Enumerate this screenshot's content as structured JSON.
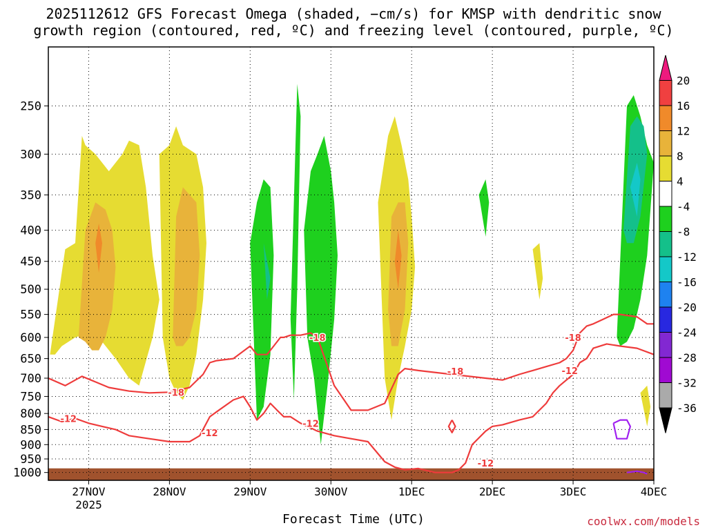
{
  "title_line1": "2025112612 GFS Forecast Omega (shaded, −cm/s) for KMSP with dendritic snow",
  "title_line2": "growth region (contoured, red, ºC) and freezing level (contoured, purple, ºC)",
  "credit": "coolwx.com/models",
  "colors": {
    "dgz_contour": "#ee3b3b",
    "freezing_contour": "#a020f0",
    "ground": "#a0522d"
  },
  "chart_data": {
    "type": "heatmap",
    "title": "2025112612 GFS Forecast Omega (shaded, −cm/s) for KMSP with dendritic snow growth region (contoured, red, ºC) and freezing level (contoured, purple, ºC)",
    "xlabel": "Forecast Time (UTC)",
    "ylabel": "",
    "x_ticks": [
      {
        "label": "27NOV",
        "sub": "2025",
        "hour": 12
      },
      {
        "label": "28NOV",
        "sub": "",
        "hour": 36
      },
      {
        "label": "29NOV",
        "sub": "",
        "hour": 60
      },
      {
        "label": "30NOV",
        "sub": "",
        "hour": 84
      },
      {
        "label": "1DEC",
        "sub": "",
        "hour": 108
      },
      {
        "label": "2DEC",
        "sub": "",
        "hour": 132
      },
      {
        "label": "3DEC",
        "sub": "",
        "hour": 156
      },
      {
        "label": "4DEC",
        "sub": "",
        "hour": 180
      }
    ],
    "xlim": [
      0,
      180
    ],
    "y_ticks": [
      250,
      300,
      350,
      400,
      450,
      500,
      550,
      600,
      650,
      700,
      750,
      800,
      850,
      900,
      950,
      1000
    ],
    "ylim": [
      1030,
      200
    ],
    "y_scale": "log",
    "grid": true,
    "colorbar": {
      "ticks": [
        20,
        16,
        12,
        8,
        4,
        -4,
        -8,
        -12,
        -16,
        -20,
        -24,
        -28,
        -32,
        -36
      ],
      "bins": [
        {
          "lo": 20,
          "hi": null,
          "color": "#ee1a7e"
        },
        {
          "lo": 16,
          "hi": 20,
          "color": "#f04040"
        },
        {
          "lo": 12,
          "hi": 16,
          "color": "#f08a2a"
        },
        {
          "lo": 8,
          "hi": 12,
          "color": "#e8b33a"
        },
        {
          "lo": 4,
          "hi": 8,
          "color": "#e6dc32"
        },
        {
          "lo": -4,
          "hi": 4,
          "color": "#ffffff"
        },
        {
          "lo": -8,
          "hi": -4,
          "color": "#1ed01e"
        },
        {
          "lo": -12,
          "hi": -8,
          "color": "#14c08a"
        },
        {
          "lo": -16,
          "hi": -12,
          "color": "#14c8c8"
        },
        {
          "lo": -20,
          "hi": -16,
          "color": "#1e82f0"
        },
        {
          "lo": -24,
          "hi": -20,
          "color": "#2828e0"
        },
        {
          "lo": -28,
          "hi": -24,
          "color": "#8228d2"
        },
        {
          "lo": -32,
          "hi": -28,
          "color": "#a00ad2"
        },
        {
          "lo": -36,
          "hi": -32,
          "color": "#aaaaaa"
        },
        {
          "lo": null,
          "hi": -36,
          "color": "#000000"
        }
      ]
    },
    "shaded_regions": [
      {
        "value": 6,
        "t": [
          0.5,
          5,
          8,
          10,
          11,
          14,
          18,
          22,
          24,
          27,
          29,
          31,
          33,
          31,
          27,
          24,
          20,
          16,
          12,
          8,
          4,
          2,
          0.5
        ],
        "p": [
          640,
          430,
          420,
          280,
          290,
          300,
          320,
          300,
          285,
          290,
          340,
          440,
          520,
          600,
          720,
          700,
          650,
          610,
          590,
          600,
          620,
          640,
          640
        ]
      },
      {
        "value": 10,
        "t": [
          9,
          11,
          14,
          17,
          19,
          20,
          19,
          17,
          15,
          13,
          11,
          9
        ],
        "p": [
          600,
          400,
          360,
          370,
          400,
          460,
          540,
          600,
          630,
          630,
          610,
          600
        ]
      },
      {
        "value": 14,
        "t": [
          14,
          15,
          16,
          15,
          14
        ],
        "p": [
          420,
          390,
          420,
          470,
          420
        ]
      },
      {
        "value": 6,
        "t": [
          33,
          36,
          38,
          40,
          44,
          46,
          47,
          46,
          44,
          42,
          40,
          38,
          36,
          34,
          33
        ],
        "p": [
          300,
          290,
          270,
          290,
          300,
          340,
          420,
          520,
          640,
          720,
          760,
          740,
          700,
          600,
          300
        ]
      },
      {
        "value": 10,
        "t": [
          37,
          38,
          40,
          42,
          44,
          45,
          44,
          42,
          40,
          38,
          37
        ],
        "p": [
          600,
          380,
          340,
          350,
          360,
          440,
          540,
          600,
          620,
          620,
          600
        ]
      },
      {
        "value": 6,
        "t": [
          98,
          101,
          103,
          105,
          107,
          108,
          109,
          108,
          106,
          104,
          102,
          100,
          98
        ],
        "p": [
          360,
          280,
          260,
          290,
          330,
          380,
          460,
          540,
          620,
          700,
          820,
          700,
          360
        ]
      },
      {
        "value": 10,
        "t": [
          101,
          102,
          104,
          106,
          107,
          106,
          104,
          102,
          101
        ],
        "p": [
          540,
          380,
          360,
          360,
          420,
          540,
          620,
          620,
          540
        ]
      },
      {
        "value": 14,
        "t": [
          103,
          104,
          105,
          104,
          103
        ],
        "p": [
          450,
          400,
          440,
          500,
          450
        ]
      },
      {
        "value": -6,
        "t": [
          60,
          62,
          64,
          66,
          67,
          66,
          64,
          62,
          60
        ],
        "p": [
          420,
          360,
          330,
          340,
          440,
          640,
          780,
          820,
          420
        ]
      },
      {
        "value": -6,
        "t": [
          72,
          74,
          75,
          74,
          73,
          72
        ],
        "p": [
          560,
          230,
          260,
          500,
          760,
          560
        ]
      },
      {
        "value": -6,
        "t": [
          76,
          78,
          80,
          82,
          84,
          85,
          86,
          85,
          83,
          81,
          79,
          77,
          76
        ],
        "p": [
          400,
          320,
          300,
          280,
          320,
          360,
          440,
          560,
          720,
          900,
          700,
          600,
          400
        ]
      },
      {
        "value": -10,
        "t": [
          64,
          66,
          65,
          64
        ],
        "p": [
          420,
          480,
          520,
          420
        ]
      },
      {
        "value": -6,
        "t": [
          128,
          130,
          131,
          130,
          128
        ],
        "p": [
          350,
          330,
          360,
          410,
          350
        ]
      },
      {
        "value": -6,
        "t": [
          169,
          172,
          174,
          176,
          178,
          180,
          178,
          176,
          174,
          172,
          170,
          169
        ],
        "p": [
          600,
          250,
          240,
          260,
          290,
          310,
          440,
          520,
          580,
          610,
          620,
          600
        ]
      },
      {
        "value": -10,
        "t": [
          171,
          173,
          175,
          177,
          178,
          176,
          174,
          172,
          171
        ],
        "p": [
          400,
          270,
          260,
          270,
          300,
          380,
          420,
          420,
          400
        ]
      },
      {
        "value": -14,
        "t": [
          173,
          175,
          176,
          175,
          173
        ],
        "p": [
          340,
          310,
          330,
          380,
          340
        ]
      },
      {
        "value": 6,
        "t": [
          144,
          146,
          147,
          146,
          144
        ],
        "p": [
          430,
          420,
          480,
          520,
          430
        ]
      },
      {
        "value": 6,
        "t": [
          176,
          178,
          179,
          178,
          176
        ],
        "p": [
          740,
          720,
          780,
          840,
          740
        ]
      }
    ],
    "contours": [
      {
        "name": "",
        "level": -18,
        "color": "#ee3b3b",
        "label_at": [
          {
            "t": 38,
            "p": 738
          },
          {
            "t": 80,
            "p": 600
          },
          {
            "t": 121,
            "p": 682
          },
          {
            "t": 156,
            "p": 600
          }
        ],
        "t": [
          0,
          5,
          10,
          14,
          18,
          24,
          30,
          36,
          42,
          46,
          48,
          50,
          55,
          60,
          62,
          65,
          67,
          69,
          70,
          72,
          75,
          78,
          80,
          85,
          90,
          95,
          100,
          104,
          106,
          110,
          120,
          130,
          135,
          140,
          144,
          148,
          152,
          154,
          156,
          158,
          160,
          162,
          165,
          168,
          170,
          175,
          178,
          180
        ],
        "p": [
          700,
          720,
          695,
          710,
          725,
          735,
          740,
          738,
          725,
          690,
          660,
          655,
          650,
          620,
          640,
          640,
          620,
          600,
          600,
          595,
          595,
          590,
          600,
          720,
          790,
          790,
          770,
          690,
          675,
          680,
          690,
          700,
          705,
          690,
          680,
          670,
          660,
          650,
          630,
          590,
          575,
          570,
          560,
          550,
          550,
          555,
          570,
          570
        ]
      },
      {
        "name": "",
        "level": -12,
        "color": "#ee3b3b",
        "label_at": [
          {
            "t": 6,
            "p": 815
          },
          {
            "t": 48,
            "p": 860
          },
          {
            "t": 78,
            "p": 830
          },
          {
            "t": 130,
            "p": 965
          },
          {
            "t": 155,
            "p": 680
          }
        ],
        "t": [
          0,
          4,
          8,
          12,
          16,
          20,
          24,
          30,
          36,
          42,
          45,
          48,
          50,
          55,
          58,
          60,
          62,
          64,
          66,
          68,
          70,
          72,
          75,
          80,
          85,
          90,
          95,
          100,
          103,
          106,
          110,
          115,
          120,
          122,
          124,
          126,
          130,
          132,
          135,
          140,
          144,
          148,
          150,
          152,
          156,
          158,
          160,
          162,
          166,
          170,
          175,
          180
        ],
        "p": [
          810,
          825,
          815,
          830,
          840,
          850,
          870,
          880,
          890,
          890,
          870,
          810,
          795,
          760,
          750,
          780,
          820,
          800,
          770,
          790,
          810,
          810,
          830,
          855,
          870,
          880,
          890,
          960,
          980,
          990,
          985,
          1000,
          1000,
          990,
          965,
          900,
          855,
          840,
          835,
          820,
          810,
          770,
          740,
          720,
          690,
          660,
          650,
          625,
          615,
          620,
          625,
          640
        ]
      },
      {
        "name": "",
        "level": -12,
        "color": "#ee3b3b",
        "label_at": [],
        "t": [
          120,
          121,
          120,
          119,
          120
        ],
        "p": [
          820,
          840,
          860,
          840,
          820
        ]
      },
      {
        "name": "",
        "level": 0,
        "color": "#a020f0",
        "label_at": [],
        "t": [
          168,
          170,
          172,
          173,
          172,
          169,
          168
        ],
        "p": [
          830,
          820,
          820,
          840,
          880,
          880,
          830
        ]
      },
      {
        "name": "",
        "level": 0,
        "color": "#a020f0",
        "label_at": [],
        "t": [
          172,
          175,
          177,
          178
        ],
        "p": [
          1000,
          995,
          1000,
          1005
        ]
      }
    ],
    "ground_pressure_top": 1000
  }
}
